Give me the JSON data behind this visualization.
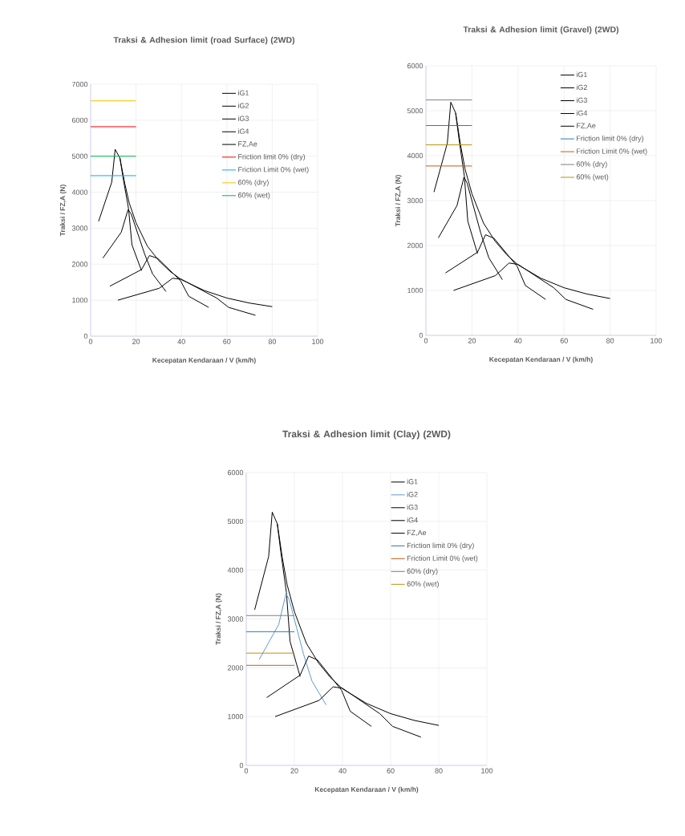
{
  "chart_data": [
    {
      "type": "line",
      "title": "Traksi & Adhesion limit (road Surface) (2WD)",
      "xlabel": "Kecepatan Kendaraan / V (km/h)",
      "ylabel": "Traksi / FZ,A (N)",
      "xlim": [
        0,
        100
      ],
      "ylim": [
        0,
        7000
      ],
      "xticks": [
        0,
        20,
        40,
        60,
        80,
        100
      ],
      "yticks": [
        0,
        1000,
        2000,
        3000,
        4000,
        5000,
        6000,
        7000
      ],
      "grid": true,
      "legend": "top right",
      "series": [
        {
          "name": "iG1",
          "color": "#000000",
          "x": [
            3.5,
            9.3,
            10.8,
            12.9,
            14.4,
            16.7,
            18.2,
            22.4
          ],
          "values": [
            3190,
            4280,
            5190,
            4950,
            4360,
            3540,
            2540,
            1820
          ]
        },
        {
          "name": "iG2",
          "color": "#000000",
          "x": [
            5.4,
            13.5,
            16.5,
            17.9,
            23.8,
            27.3,
            33.2
          ],
          "values": [
            2170,
            2890,
            3520,
            3390,
            2280,
            1730,
            1240
          ]
        },
        {
          "name": "iG3",
          "color": "#000000",
          "x": [
            8.5,
            22.4,
            25.9,
            29.6,
            39.6,
            43.2,
            52
          ],
          "values": [
            1390,
            1850,
            2240,
            2160,
            1540,
            1110,
            800
          ]
        },
        {
          "name": "iG4",
          "color": "#000000",
          "x": [
            12,
            30.2,
            36.1,
            40,
            55.5,
            60.8,
            72.6
          ],
          "values": [
            1000,
            1330,
            1610,
            1580,
            1060,
            800,
            580
          ]
        },
        {
          "name": "FZ,Ae",
          "color": "#000000",
          "x": [
            12.9,
            15,
            17,
            20,
            25,
            30,
            35,
            40,
            50,
            60,
            70,
            80
          ],
          "values": [
            4950,
            4250,
            3700,
            3150,
            2500,
            2100,
            1800,
            1570,
            1270,
            1060,
            920,
            820
          ]
        },
        {
          "name": "Friction limit 0% (dry)",
          "color": "#ff0000",
          "x": [
            0,
            20
          ],
          "values": [
            5820,
            5820
          ]
        },
        {
          "name": "Friction Limit 0% (wet)",
          "color": "#00b0f0",
          "x": [
            0,
            20
          ],
          "values": [
            4460,
            4460
          ]
        },
        {
          "name": "60% (dry)",
          "color": "#ffc000",
          "x": [
            0,
            20
          ],
          "values": [
            6540,
            6540
          ]
        },
        {
          "name": "60% (wet)",
          "color": "#00b050",
          "x": [
            0,
            20
          ],
          "values": [
            5000,
            5000
          ]
        }
      ]
    },
    {
      "type": "line",
      "title": "Traksi & Adhesion limit (Gravel) (2WD)",
      "xlabel": "Kecepatan Kendaraan / V (km/h)",
      "ylabel": "Traksi / FZ,A (N)",
      "xlim": [
        0,
        100
      ],
      "ylim": [
        0,
        6000
      ],
      "xticks": [
        0,
        20,
        40,
        60,
        80,
        100
      ],
      "yticks": [
        0,
        1000,
        2000,
        3000,
        4000,
        5000,
        6000
      ],
      "grid": true,
      "legend": "top right",
      "series": [
        {
          "name": "iG1",
          "color": "#000000",
          "x": [
            3.5,
            9.3,
            10.8,
            12.9,
            14.4,
            16.7,
            18.2,
            22.4
          ],
          "values": [
            3190,
            4280,
            5190,
            4950,
            4360,
            3540,
            2540,
            1820
          ]
        },
        {
          "name": "iG2",
          "color": "#000000",
          "x": [
            5.4,
            13.5,
            16.5,
            17.9,
            23.8,
            27.3,
            33.2
          ],
          "values": [
            2170,
            2890,
            3520,
            3390,
            2280,
            1730,
            1240
          ]
        },
        {
          "name": "iG3",
          "color": "#000000",
          "x": [
            8.5,
            22.4,
            25.9,
            29.6,
            39.6,
            43.2,
            52
          ],
          "values": [
            1390,
            1850,
            2240,
            2160,
            1540,
            1110,
            800
          ]
        },
        {
          "name": "iG4",
          "color": "#000000",
          "x": [
            12,
            30.2,
            36.1,
            40,
            55.5,
            60.8,
            72.6
          ],
          "values": [
            1000,
            1330,
            1610,
            1580,
            1060,
            800,
            580
          ]
        },
        {
          "name": "FZ,Ae",
          "color": "#000000",
          "x": [
            12.9,
            15,
            17,
            20,
            25,
            30,
            35,
            40,
            50,
            60,
            70,
            80
          ],
          "values": [
            4950,
            4250,
            3700,
            3150,
            2500,
            2100,
            1800,
            1570,
            1270,
            1060,
            920,
            820
          ]
        },
        {
          "name": "Friction limit 0% (dry)",
          "color": "#2e75b6",
          "x": [
            0,
            20
          ],
          "values": [
            4670,
            4670
          ]
        },
        {
          "name": "Friction Limit 0% (wet)",
          "color": "#c55a11",
          "x": [
            0,
            20
          ],
          "values": [
            3770,
            3770
          ]
        },
        {
          "name": "60% (dry)",
          "color": "#7f7f7f",
          "x": [
            0,
            20
          ],
          "values": [
            5240,
            5240
          ]
        },
        {
          "name": "60% (wet)",
          "color": "#bf9000",
          "x": [
            0,
            20
          ],
          "values": [
            4240,
            4240
          ]
        }
      ]
    },
    {
      "type": "line",
      "title": "Traksi & Adhesion limit (Clay) (2WD)",
      "xlabel": "Kecepatan Kendaraan / V (km/h)",
      "ylabel": "Traksi / FZ,A (N)",
      "xlim": [
        0,
        100
      ],
      "ylim": [
        0,
        6000
      ],
      "xticks": [
        0,
        20,
        40,
        60,
        80,
        100
      ],
      "yticks": [
        0,
        1000,
        2000,
        3000,
        4000,
        5000,
        6000
      ],
      "grid": true,
      "legend": "top right",
      "series": [
        {
          "name": "iG1",
          "color": "#000000",
          "x": [
            3.5,
            9.3,
            10.8,
            12.9,
            14.4,
            16.7,
            18.2,
            22.4
          ],
          "values": [
            3190,
            4280,
            5190,
            4950,
            4360,
            3540,
            2540,
            1820
          ]
        },
        {
          "name": "iG2",
          "color": "#5b9bd5",
          "x": [
            5.4,
            13.5,
            16.5,
            17.9,
            23.8,
            27.3,
            33.2
          ],
          "values": [
            2170,
            2890,
            3520,
            3390,
            2280,
            1730,
            1240
          ]
        },
        {
          "name": "iG3",
          "color": "#000000",
          "x": [
            8.5,
            22.4,
            25.9,
            29.6,
            39.6,
            43.2,
            52
          ],
          "values": [
            1390,
            1850,
            2240,
            2160,
            1540,
            1110,
            800
          ]
        },
        {
          "name": "iG4",
          "color": "#000000",
          "x": [
            12,
            30.2,
            36.1,
            40,
            55.5,
            60.8,
            72.6
          ],
          "values": [
            1000,
            1330,
            1610,
            1580,
            1060,
            800,
            580
          ]
        },
        {
          "name": "FZ,Ae",
          "color": "#000000",
          "x": [
            12.9,
            15,
            17,
            20,
            25,
            30,
            35,
            40,
            50,
            60,
            70,
            80
          ],
          "values": [
            4950,
            4250,
            3700,
            3150,
            2500,
            2100,
            1800,
            1570,
            1270,
            1060,
            920,
            820
          ]
        },
        {
          "name": "Friction limit 0% (dry)",
          "color": "#2e75b6",
          "x": [
            0,
            20
          ],
          "values": [
            2740,
            2740
          ]
        },
        {
          "name": "Friction Limit 0% (wet)",
          "color": "#c55a11",
          "x": [
            0,
            20
          ],
          "values": [
            2050,
            2050
          ]
        },
        {
          "name": "60% (dry)",
          "color": "#7f7f7f",
          "x": [
            0,
            20
          ],
          "values": [
            3070,
            3070
          ]
        },
        {
          "name": "60% (wet)",
          "color": "#bf9000",
          "x": [
            0,
            20
          ],
          "values": [
            2300,
            2300
          ]
        }
      ]
    }
  ]
}
